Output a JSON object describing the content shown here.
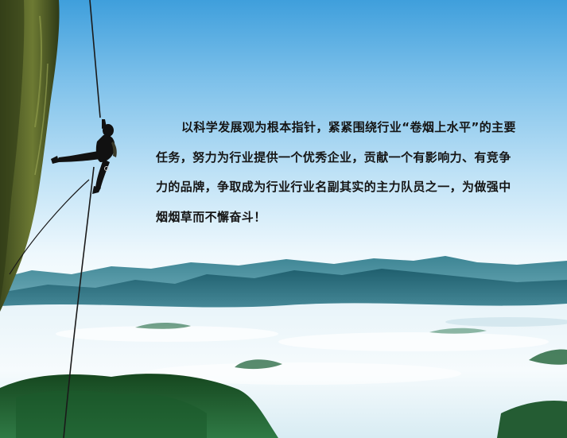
{
  "slogan": {
    "text": "以科学发展观为根本指针，紧紧围绕行业“卷烟上水平”的主要任务，努力为行业提供一个优秀企业，贡献一个有影响力、有竞争力的品牌，争取成为行业行业名副其实的主力队员之一，为做强中烟烟草而不懈奋斗！"
  },
  "colors": {
    "sky_top": "#3f9fdc",
    "sky_mid": "#bfe2f6",
    "mountain": "#2a6b78",
    "mist": "#eef8fd",
    "forest": "#1e5a2a",
    "text": "#151515"
  }
}
